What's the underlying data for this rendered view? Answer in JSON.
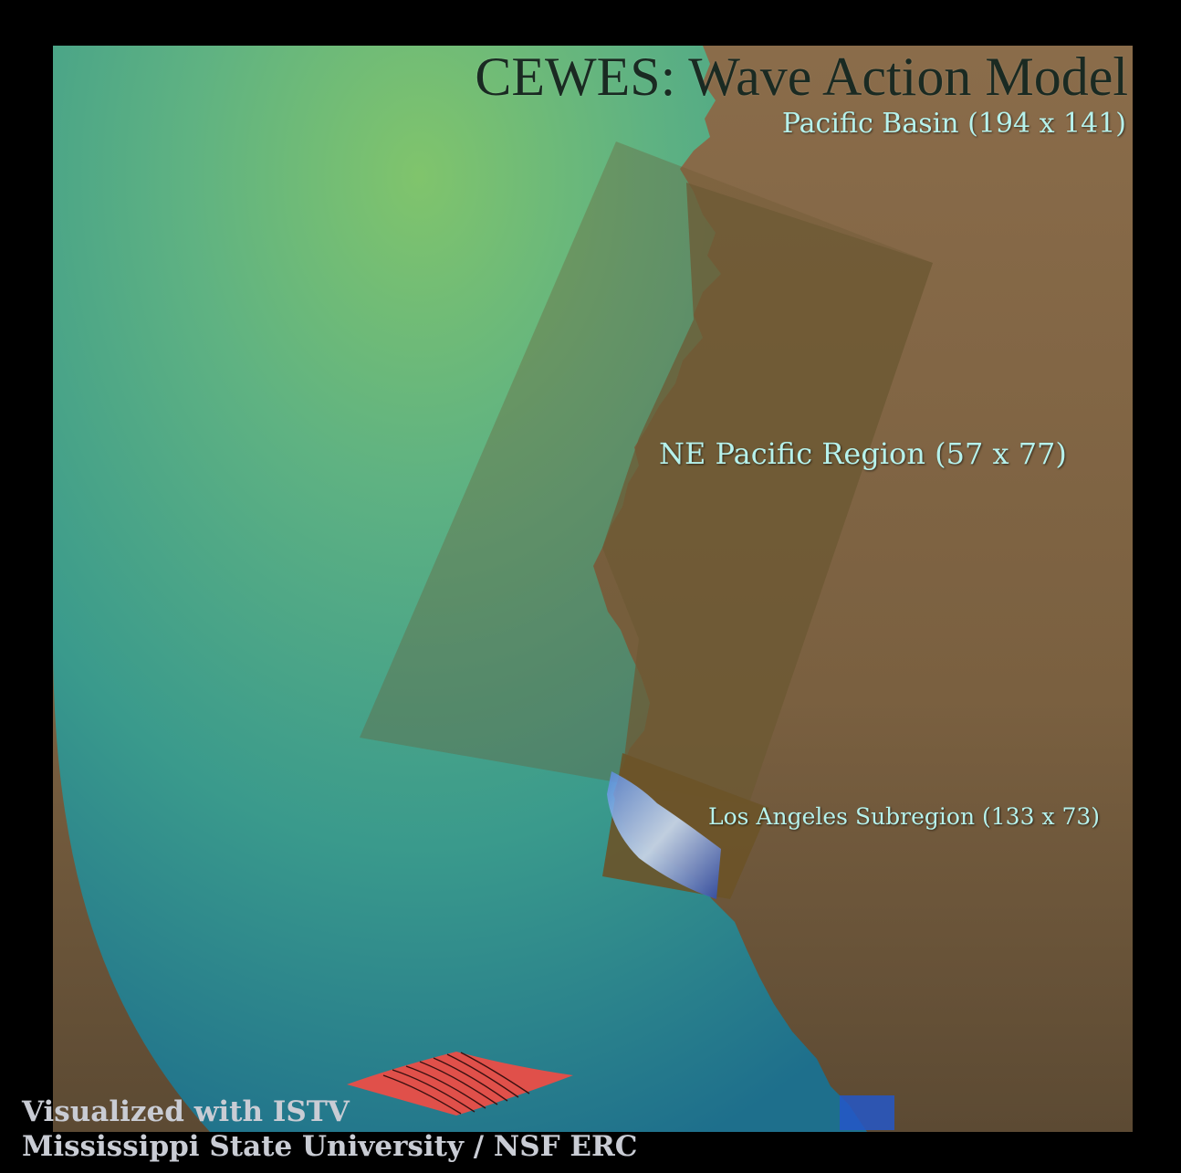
{
  "title": "CEWES: Wave Action Model",
  "regions": {
    "pacific_basin": "Pacific Basin (194 x 141)",
    "ne_pacific": "NE Pacific Region (57 x 77)",
    "los_angeles": "Los Angeles Subregion (133 x 73)"
  },
  "credits": {
    "line1": "Visualized with ISTV",
    "line2": "Mississippi State University / NSF ERC"
  },
  "colors": {
    "background": "#000000",
    "ocean_light": "#79c46f",
    "ocean_mid": "#3f9d8a",
    "ocean_deep": "#1f6f8a",
    "land": "#85694a",
    "region_overlay": "#6e5a34",
    "label_text": "#b6f2ec",
    "wave_icon": "#e0504a"
  }
}
